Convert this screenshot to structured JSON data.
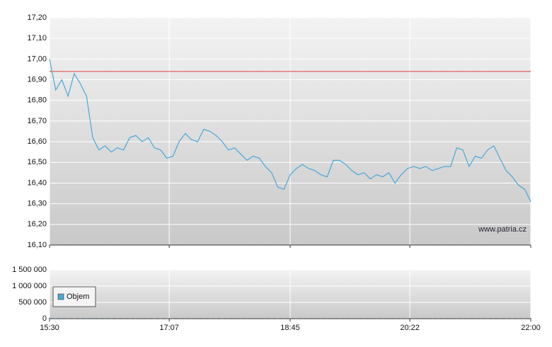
{
  "chart_data": [
    {
      "type": "line",
      "color": "#4aa8d6",
      "x": [
        "15:30",
        "15:35",
        "15:40",
        "15:45",
        "15:50",
        "15:55",
        "16:00",
        "16:05",
        "16:10",
        "16:15",
        "16:20",
        "16:25",
        "16:30",
        "16:35",
        "16:40",
        "16:45",
        "16:50",
        "16:55",
        "17:00",
        "17:05",
        "17:10",
        "17:15",
        "17:20",
        "17:25",
        "17:30",
        "17:35",
        "17:40",
        "17:45",
        "17:50",
        "17:55",
        "18:00",
        "18:05",
        "18:10",
        "18:15",
        "18:20",
        "18:25",
        "18:30",
        "18:35",
        "18:40",
        "18:45",
        "18:50",
        "18:55",
        "19:00",
        "19:05",
        "19:10",
        "19:15",
        "19:20",
        "19:25",
        "19:30",
        "19:35",
        "19:40",
        "19:45",
        "19:50",
        "19:55",
        "20:00",
        "20:05",
        "20:10",
        "20:15",
        "20:20",
        "20:25",
        "20:30",
        "20:35",
        "20:40",
        "20:45",
        "20:50",
        "20:55",
        "21:00",
        "21:05",
        "21:10",
        "21:15",
        "21:20",
        "21:25",
        "21:30",
        "21:35",
        "21:40",
        "21:45",
        "21:50",
        "21:55",
        "22:00"
      ],
      "values": [
        17.0,
        16.85,
        16.9,
        16.82,
        16.93,
        16.88,
        16.82,
        16.62,
        16.56,
        16.58,
        16.55,
        16.57,
        16.56,
        16.62,
        16.63,
        16.6,
        16.62,
        16.57,
        16.56,
        16.52,
        16.53,
        16.6,
        16.64,
        16.61,
        16.6,
        16.66,
        16.65,
        16.63,
        16.6,
        16.56,
        16.57,
        16.54,
        16.51,
        16.53,
        16.52,
        16.48,
        16.45,
        16.38,
        16.37,
        16.44,
        16.47,
        16.49,
        16.47,
        16.46,
        16.44,
        16.43,
        16.51,
        16.51,
        16.49,
        16.46,
        16.44,
        16.45,
        16.42,
        16.44,
        16.43,
        16.45,
        16.4,
        16.44,
        16.47,
        16.48,
        16.47,
        16.48,
        16.46,
        16.47,
        16.48,
        16.48,
        16.57,
        16.56,
        16.48,
        16.53,
        16.52,
        16.56,
        16.58,
        16.52,
        16.46,
        16.43,
        16.39,
        16.37,
        16.31
      ],
      "xlim": [
        "15:30",
        "22:00"
      ],
      "ylim": [
        16.1,
        17.2
      ],
      "yticks": [
        {
          "value": 16.1,
          "label": "16,10"
        },
        {
          "value": 16.2,
          "label": "16,20"
        },
        {
          "value": 16.3,
          "label": "16,30"
        },
        {
          "value": 16.4,
          "label": "16,40"
        },
        {
          "value": 16.5,
          "label": "16,50"
        },
        {
          "value": 16.6,
          "label": "16,60"
        },
        {
          "value": 16.7,
          "label": "16,70"
        },
        {
          "value": 16.8,
          "label": "16,80"
        },
        {
          "value": 16.9,
          "label": "16,90"
        },
        {
          "value": 17.0,
          "label": "17,00"
        },
        {
          "value": 17.1,
          "label": "17,10"
        },
        {
          "value": 17.2,
          "label": "17,20"
        }
      ],
      "reference_line": {
        "value": 16.94,
        "color": "#e0403a"
      },
      "annotation": "www.patria.cz",
      "grid": true
    },
    {
      "type": "bar",
      "x": [
        "15:30",
        "15:35",
        "15:40",
        "15:45",
        "15:50",
        "15:55",
        "16:00",
        "16:05",
        "16:10",
        "16:15",
        "16:20",
        "16:25",
        "16:30",
        "16:35",
        "16:40",
        "16:45",
        "16:50",
        "16:55",
        "17:00",
        "17:05",
        "17:10",
        "17:15",
        "17:20",
        "17:25",
        "17:30",
        "17:35",
        "17:40",
        "17:45",
        "17:50",
        "17:55",
        "18:00",
        "18:05",
        "18:10",
        "18:15",
        "18:20",
        "18:25",
        "18:30",
        "18:35",
        "18:40",
        "18:45",
        "18:50",
        "18:55",
        "19:00",
        "19:05",
        "19:10",
        "19:15",
        "19:20",
        "19:25",
        "19:30",
        "19:35",
        "19:40",
        "19:45",
        "19:50",
        "19:55",
        "20:00",
        "20:05",
        "20:10",
        "20:15",
        "20:20",
        "20:25",
        "20:30",
        "20:35",
        "20:40",
        "20:45",
        "20:50",
        "20:55",
        "21:00",
        "21:05",
        "21:10",
        "21:15",
        "21:20",
        "21:25",
        "21:30",
        "21:35",
        "21:40",
        "21:45",
        "21:50",
        "21:55",
        "22:00"
      ],
      "series": [
        {
          "name": "Objem",
          "color": "#4aa8d6",
          "values": [
            30000,
            15000,
            20000,
            10000,
            12000,
            8000,
            15000,
            25000,
            18000,
            9000,
            7000,
            8000,
            6000,
            9000,
            7000,
            6000,
            5000,
            8000,
            9000,
            10000,
            6000,
            7000,
            8000,
            6000,
            5000,
            7000,
            6000,
            5000,
            9000,
            6000,
            5000,
            6000,
            7000,
            5000,
            4000,
            6000,
            7000,
            9000,
            8000,
            6000,
            5000,
            5000,
            4000,
            5000,
            6000,
            4000,
            5000,
            6000,
            5000,
            4000,
            5000,
            6000,
            4000,
            5000,
            4000,
            5000,
            6000,
            5000,
            4000,
            5000,
            4000,
            5000,
            6000,
            5000,
            4000,
            5000,
            8000,
            7000,
            6000,
            5000,
            5000,
            6000,
            7000,
            6000,
            8000,
            7000,
            9000,
            12000,
            25000
          ]
        }
      ],
      "xlim": [
        "15:30",
        "22:00"
      ],
      "xticks": [
        "15:30",
        "17:07",
        "18:45",
        "20:22",
        "22:00"
      ],
      "ylim": [
        0,
        1500000
      ],
      "yticks": [
        0,
        {
          "value": 500000,
          "label": "500 000"
        },
        {
          "value": 1000000,
          "label": "1 000 000"
        },
        {
          "value": 1500000,
          "label": "1 500 000"
        }
      ],
      "grid": true
    }
  ]
}
